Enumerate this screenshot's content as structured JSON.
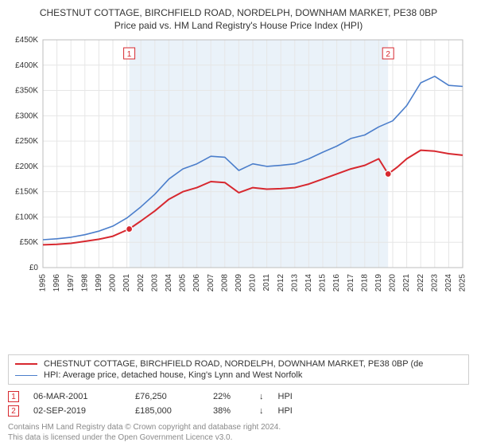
{
  "title_line1": "CHESTNUT COTTAGE, BIRCHFIELD ROAD, NORDELPH, DOWNHAM MARKET, PE38 0BP",
  "title_line2": "Price paid vs. HM Land Registry's House Price Index (HPI)",
  "chart": {
    "type": "line",
    "background_color": "#ffffff",
    "plot_background": "#ffffff",
    "grid_color": "#e6e6e6",
    "shaded_band_color": "#eaf2f9",
    "axis_color": "#bdbdbd",
    "ylim": [
      0,
      450000
    ],
    "ytick_step": 50000,
    "yticks": [
      "£0",
      "£50K",
      "£100K",
      "£150K",
      "£200K",
      "£250K",
      "£300K",
      "£350K",
      "£400K",
      "£450K"
    ],
    "x_start_year": 1995,
    "x_end_year": 2025,
    "xticks": [
      1995,
      1996,
      1997,
      1998,
      1999,
      2000,
      2001,
      2002,
      2003,
      2004,
      2005,
      2006,
      2007,
      2008,
      2009,
      2010,
      2011,
      2012,
      2013,
      2014,
      2015,
      2016,
      2017,
      2018,
      2019,
      2020,
      2021,
      2022,
      2023,
      2024,
      2025
    ],
    "shaded_band": {
      "from_year": 2001.17,
      "to_year": 2019.67
    },
    "series": [
      {
        "id": "property",
        "label": "CHESTNUT COTTAGE, BIRCHFIELD ROAD, NORDELPH, DOWNHAM MARKET, PE38 0BP (de",
        "color": "#d7282f",
        "line_width": 2,
        "values": [
          [
            1995,
            45000
          ],
          [
            1996,
            46000
          ],
          [
            1997,
            48000
          ],
          [
            1998,
            52000
          ],
          [
            1999,
            56000
          ],
          [
            2000,
            62000
          ],
          [
            2001.17,
            76250
          ],
          [
            2002,
            92000
          ],
          [
            2003,
            112000
          ],
          [
            2004,
            135000
          ],
          [
            2005,
            150000
          ],
          [
            2006,
            158000
          ],
          [
            2007,
            170000
          ],
          [
            2008,
            168000
          ],
          [
            2009,
            148000
          ],
          [
            2010,
            158000
          ],
          [
            2011,
            155000
          ],
          [
            2012,
            156000
          ],
          [
            2013,
            158000
          ],
          [
            2014,
            165000
          ],
          [
            2015,
            175000
          ],
          [
            2016,
            185000
          ],
          [
            2017,
            195000
          ],
          [
            2018,
            202000
          ],
          [
            2019,
            215000
          ],
          [
            2019.67,
            185000
          ],
          [
            2020.3,
            198000
          ],
          [
            2021,
            215000
          ],
          [
            2022,
            232000
          ],
          [
            2023,
            230000
          ],
          [
            2024,
            225000
          ],
          [
            2025,
            222000
          ]
        ]
      },
      {
        "id": "hpi",
        "label": "HPI: Average price, detached house, King's Lynn and West Norfolk",
        "color": "#4b7ecb",
        "line_width": 1.6,
        "values": [
          [
            1995,
            55000
          ],
          [
            1996,
            57000
          ],
          [
            1997,
            60000
          ],
          [
            1998,
            65000
          ],
          [
            1999,
            72000
          ],
          [
            2000,
            82000
          ],
          [
            2001,
            98000
          ],
          [
            2002,
            120000
          ],
          [
            2003,
            145000
          ],
          [
            2004,
            175000
          ],
          [
            2005,
            195000
          ],
          [
            2006,
            205000
          ],
          [
            2007,
            220000
          ],
          [
            2008,
            218000
          ],
          [
            2009,
            192000
          ],
          [
            2010,
            205000
          ],
          [
            2011,
            200000
          ],
          [
            2012,
            202000
          ],
          [
            2013,
            205000
          ],
          [
            2014,
            215000
          ],
          [
            2015,
            228000
          ],
          [
            2016,
            240000
          ],
          [
            2017,
            255000
          ],
          [
            2018,
            262000
          ],
          [
            2019,
            278000
          ],
          [
            2020,
            290000
          ],
          [
            2021,
            320000
          ],
          [
            2022,
            365000
          ],
          [
            2023,
            378000
          ],
          [
            2024,
            360000
          ],
          [
            2025,
            358000
          ]
        ]
      }
    ],
    "markers": [
      {
        "n": "1",
        "year": 2001.17,
        "value": 76250,
        "color": "#d7282f"
      },
      {
        "n": "2",
        "year": 2019.67,
        "value": 185000,
        "color": "#d7282f"
      }
    ]
  },
  "legend": {
    "border_color": "#cecece",
    "items": [
      {
        "color": "#d7282f",
        "width": 2,
        "label": "CHESTNUT COTTAGE, BIRCHFIELD ROAD, NORDELPH, DOWNHAM MARKET, PE38 0BP (de"
      },
      {
        "color": "#4b7ecb",
        "width": 1.6,
        "label": "HPI: Average price, detached house, King's Lynn and West Norfolk"
      }
    ]
  },
  "marker_table": {
    "rows": [
      {
        "n": "1",
        "color": "#d7282f",
        "date": "06-MAR-2001",
        "price": "£76,250",
        "pct": "22%",
        "arrow": "↓",
        "ref": "HPI"
      },
      {
        "n": "2",
        "color": "#d7282f",
        "date": "02-SEP-2019",
        "price": "£185,000",
        "pct": "38%",
        "arrow": "↓",
        "ref": "HPI"
      }
    ]
  },
  "footer": {
    "line1": "Contains HM Land Registry data © Crown copyright and database right 2024.",
    "line2": "This data is licensed under the Open Government Licence v3.0."
  }
}
